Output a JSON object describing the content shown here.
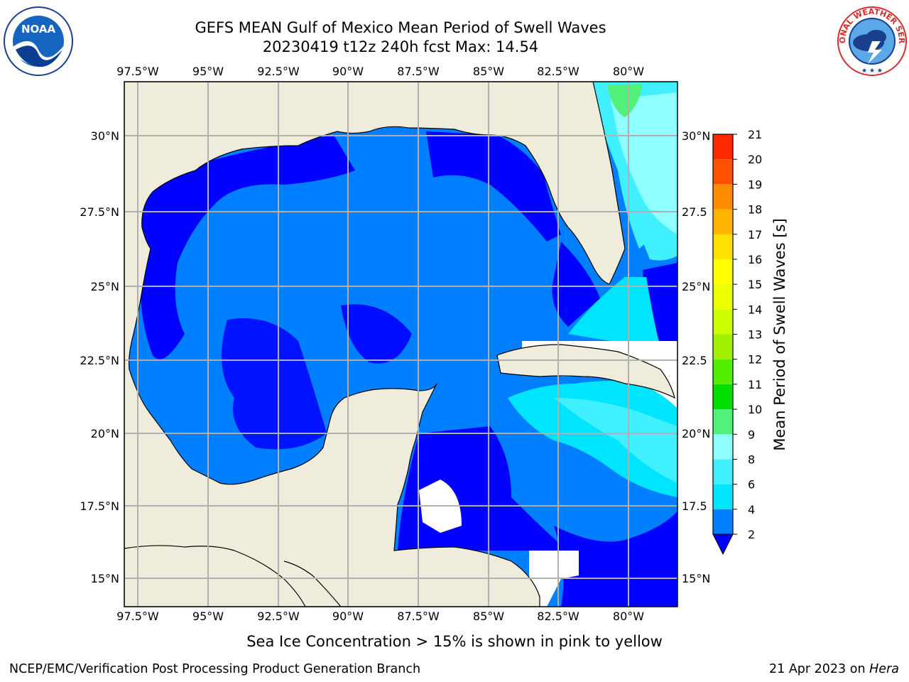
{
  "header": {
    "title_line1": "GEFS MEAN Gulf of Mexico Mean Period of Swell Waves",
    "title_line2": "20230419 t12z 240h fcst   Max: 14.54"
  },
  "logos": {
    "left": {
      "name": "noaa-logo",
      "text": "NOAA"
    },
    "right": {
      "name": "national-weather-service-logo",
      "text": "NATIONAL WEATHER SERVICE"
    }
  },
  "map": {
    "lon_labels": [
      "97.5°W",
      "95°W",
      "92.5°W",
      "90°W",
      "87.5°W",
      "85°W",
      "82.5°W",
      "80°W"
    ],
    "lat_labels_left": [
      "30°N",
      "27.5°N",
      "25°N",
      "22.5°N",
      "20°N",
      "17.5°N",
      "15°N"
    ],
    "lat_labels_right": [
      "30°N",
      "27.5",
      "25°N",
      "22.5",
      "20°N",
      "17.5",
      "15°N"
    ],
    "colors": {
      "land": "#efecdc",
      "grid": "#b0b0b0",
      "level_2_4": "#0080ff",
      "below_2": "#0000ff",
      "level_4_6": "#00e5ff",
      "level_6_8": "#40f0ff",
      "level_8_9": "#90ffff",
      "level_9_10": "#50f07a",
      "level_10_11": "#00e000",
      "no_data": "#ffffff"
    }
  },
  "colorbar": {
    "label": "Mean Period of Swell Waves [s]",
    "ticks": [
      "2",
      "4",
      "6",
      "8",
      "9",
      "10",
      "11",
      "12",
      "13",
      "14",
      "15",
      "16",
      "17",
      "18",
      "19",
      "20",
      "21"
    ],
    "bin_colors": [
      "#0080ff",
      "#00e5ff",
      "#40f0ff",
      "#90ffff",
      "#50f07a",
      "#00e000",
      "#50f000",
      "#a0f000",
      "#ccff00",
      "#eeff00",
      "#ffff00",
      "#ffe000",
      "#ffb400",
      "#ff8c00",
      "#ff5000",
      "#ff2800",
      "#ff0000"
    ],
    "extend_color": "#0000ff"
  },
  "footer": {
    "note": "Sea Ice Concentration > 15% is shown in pink to yellow",
    "producer": "NCEP/EMC/Verification Post Processing Product Generation Branch",
    "date": "21 Apr 2023 on",
    "machine": "Hera"
  }
}
